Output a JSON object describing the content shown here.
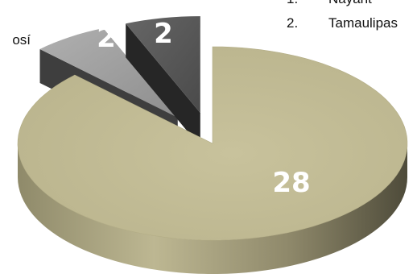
{
  "chart_data": {
    "type": "pie",
    "categories": [
      "",
      "",
      ""
    ],
    "values": [
      28,
      2,
      2
    ],
    "data_labels": [
      "28",
      "2",
      "2"
    ],
    "colors": [
      "#c2bc94",
      "#a3a3a3",
      "#5a5a5a"
    ],
    "three_d": true,
    "exploded": [
      false,
      true,
      true
    ],
    "legend_placement": "top-right"
  },
  "legend": {
    "items": [
      {
        "number": "1.",
        "label": "Nayarit"
      },
      {
        "number": "2.",
        "label": "Tamaulipas"
      }
    ],
    "partial_left_text": "osí"
  }
}
